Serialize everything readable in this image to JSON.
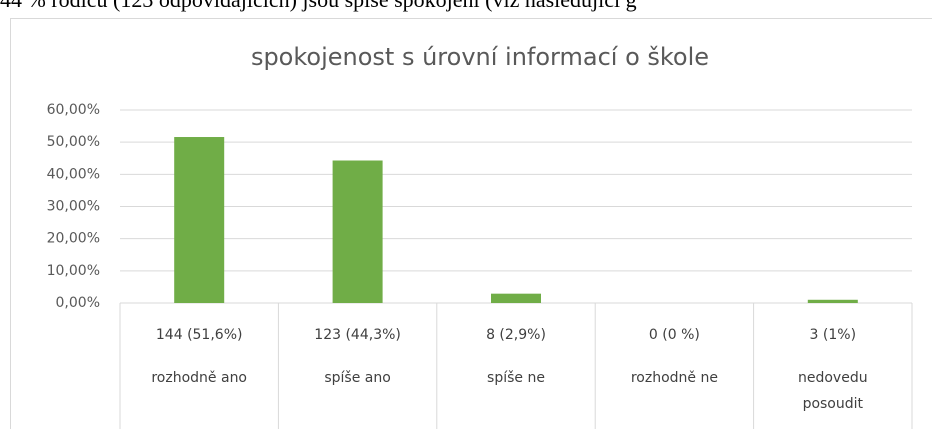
{
  "header_text": "44 % rodičů (123 odpovídajících) jsou spíše spokojeni (viz následující g",
  "chart_data": {
    "type": "bar",
    "title": "spokojenost s úrovní informací o škole",
    "categories": [
      "rozhodně ano",
      "spíše ano",
      "spíše ne",
      "rozhodně ne",
      "nedovedu posoudit"
    ],
    "values": [
      51.6,
      44.3,
      2.9,
      0,
      1
    ],
    "value_labels": [
      "144 (51,6%)",
      "123 (44,3%)",
      "8 (2,9%)",
      "0 (0 %)",
      "3 (1%)"
    ],
    "color": "#70ad47",
    "ylim": [
      0,
      60
    ],
    "yticks": [
      {
        "value": 0,
        "label": "0,00%"
      },
      {
        "value": 10,
        "label": "10,00%"
      },
      {
        "value": 20,
        "label": "20,00%"
      },
      {
        "value": 30,
        "label": "30,00%"
      },
      {
        "value": 40,
        "label": "40,00%"
      },
      {
        "value": 50,
        "label": "50,00%"
      },
      {
        "value": 60,
        "label": "60,00%"
      }
    ],
    "grid": true
  }
}
